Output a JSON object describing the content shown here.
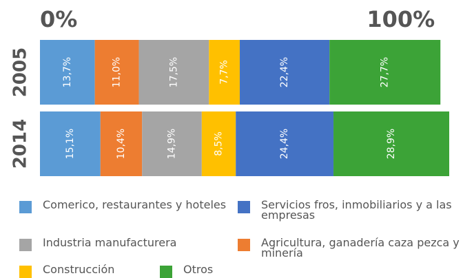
{
  "chart_data": {
    "type": "stacked-bar",
    "categories": [
      "2005",
      "2014"
    ],
    "series": [
      {
        "name": "Comerico, restaurantes y hoteles",
        "color": "#5b9bd5",
        "values": [
          13.7,
          15.1
        ],
        "value_labels": [
          "13,7%",
          "15,1%"
        ]
      },
      {
        "name": "Agricultura, ganadería caza pezca y minería",
        "color": "#ed7d31",
        "values": [
          11.0,
          10.4
        ],
        "value_labels": [
          "11,0%",
          "10,4%"
        ]
      },
      {
        "name": "Industria manufacturera",
        "color": "#a5a5a5",
        "values": [
          17.5,
          14.9
        ],
        "value_labels": [
          "17,5%",
          "14,9%"
        ]
      },
      {
        "name": "Construcción",
        "color": "#ffc000",
        "values": [
          7.7,
          8.5
        ],
        "value_labels": [
          "7,7%",
          "8,5%"
        ]
      },
      {
        "name": "Servicios fros, inmobiliarios y a las empresas",
        "color": "#4472c4",
        "values": [
          22.4,
          24.4
        ],
        "value_labels": [
          "22,4%",
          "24,4%"
        ]
      },
      {
        "name": "Otros",
        "color": "#3ca337",
        "values": [
          27.7,
          28.9
        ],
        "value_labels": [
          "27,7%",
          "28,9%"
        ]
      }
    ],
    "xlim": [
      0,
      102.2
    ],
    "xticks": [
      {
        "value": 0,
        "label": "0%"
      },
      {
        "value": 100,
        "label": "100%"
      }
    ]
  }
}
